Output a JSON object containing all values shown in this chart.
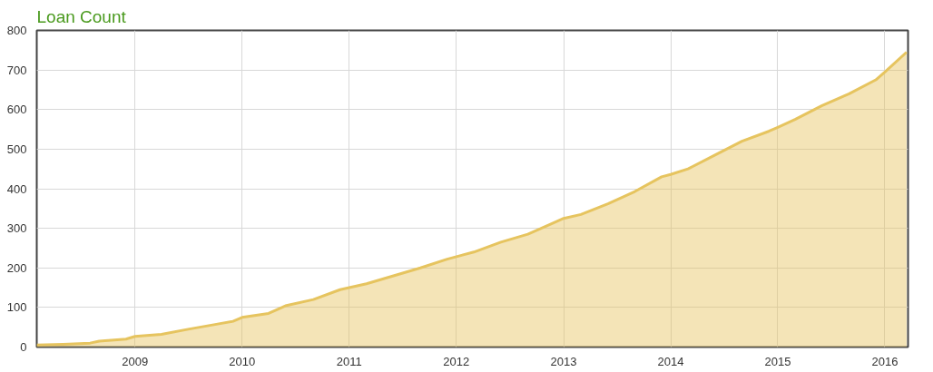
{
  "chart_data": {
    "type": "area",
    "title": "Loan Count",
    "x": [
      "2008-02",
      "2008-05",
      "2008-08",
      "2008-09",
      "2008-12",
      "2009-01",
      "2009-04",
      "2009-07",
      "2009-10",
      "2009-12",
      "2010-01",
      "2010-04",
      "2010-05",
      "2010-06",
      "2010-09",
      "2010-12",
      "2011-03",
      "2011-06",
      "2011-09",
      "2011-12",
      "2012-03",
      "2012-06",
      "2012-09",
      "2012-12",
      "2013-01",
      "2013-03",
      "2013-06",
      "2013-09",
      "2013-12",
      "2014-01",
      "2014-03",
      "2014-06",
      "2014-09",
      "2014-12",
      "2015-01",
      "2015-03",
      "2015-06",
      "2015-09",
      "2015-12",
      "2016-01",
      "2016-03-15"
    ],
    "series": [
      {
        "color": "#e6c45f",
        "values": [
          5,
          7,
          10,
          15,
          20,
          27,
          32,
          45,
          57,
          65,
          75,
          85,
          95,
          105,
          120,
          145,
          160,
          180,
          200,
          222,
          240,
          265,
          285,
          315,
          325,
          335,
          362,
          393,
          430,
          436,
          450,
          485,
          520,
          545,
          555,
          575,
          610,
          640,
          675,
          695,
          745
        ]
      }
    ],
    "xlim": [
      "2008-02",
      "2016-03-20"
    ],
    "ylim": [
      0,
      800
    ],
    "xticks": [
      "2009",
      "2010",
      "2011",
      "2012",
      "2013",
      "2014",
      "2015",
      "2016"
    ],
    "yticks": [
      0,
      100,
      200,
      300,
      400,
      500,
      600,
      700,
      800
    ],
    "grid": true
  }
}
